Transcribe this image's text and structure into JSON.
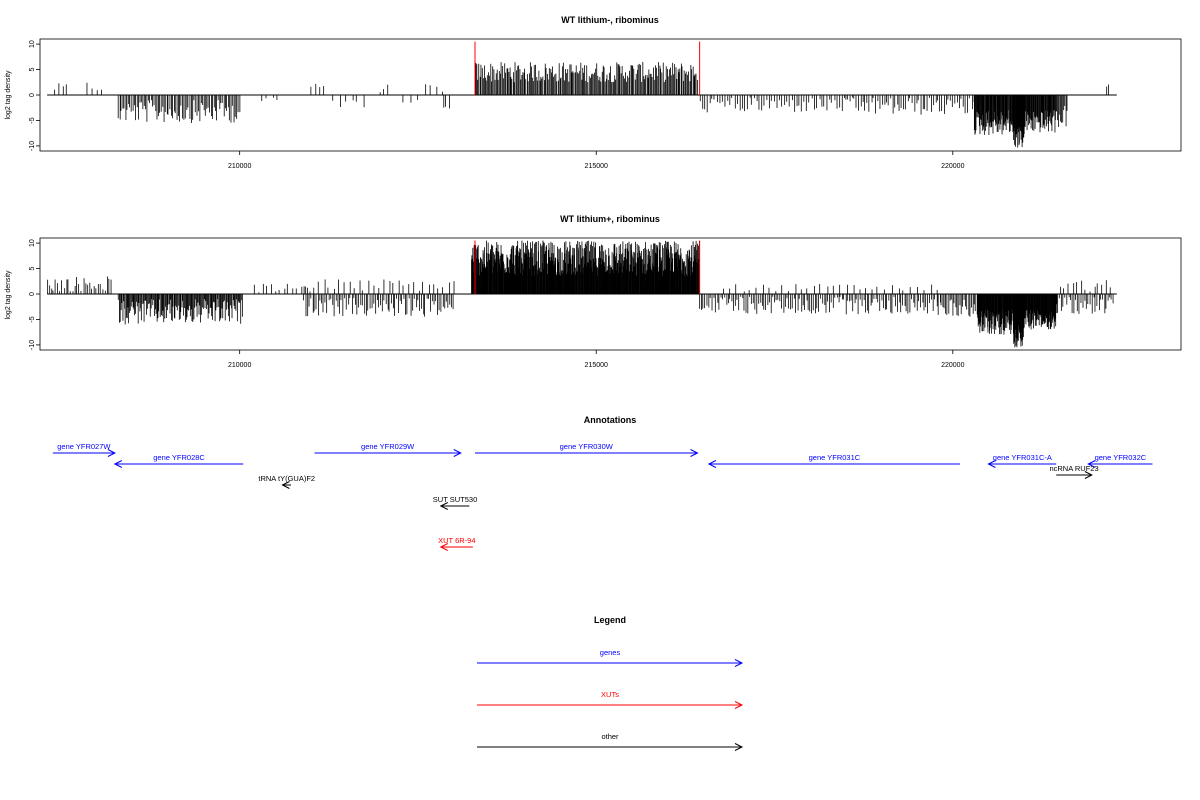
{
  "colors": {
    "gene": "#0000ff",
    "xut": "#ff0000",
    "other": "#000000",
    "boundary": "#ff0000",
    "bars": "#000000"
  },
  "chart_data": [
    {
      "type": "bar",
      "title": "WT lithium-, ribominus",
      "ylabel": "log2 tag density",
      "xlim": [
        207200,
        223200
      ],
      "ylim": [
        -11,
        11
      ],
      "xticks": [
        210000,
        215000,
        220000
      ],
      "xtick_labels": [
        "210000",
        "215000",
        "220000"
      ],
      "yticks": [
        -10,
        -5,
        0,
        5,
        10
      ],
      "ytick_labels": [
        "-10",
        "-5",
        "0",
        "5",
        "10"
      ],
      "baseline_range": [
        207300,
        222300
      ],
      "boundaries": [
        213300,
        216450
      ],
      "segments": [
        {
          "start": 207400,
          "end": 207600,
          "min": 0.5,
          "max": 2.3,
          "step": 60,
          "sign": 1
        },
        {
          "start": 207850,
          "end": 208100,
          "min": 0.5,
          "max": 2.8,
          "step": 70,
          "sign": 1
        },
        {
          "start": 208300,
          "end": 210000,
          "min": 1.0,
          "max": 5.5,
          "step": 20,
          "sign": -1
        },
        {
          "start": 210300,
          "end": 210600,
          "min": 0.5,
          "max": 1.5,
          "step": 80,
          "sign": -1
        },
        {
          "start": 211000,
          "end": 211200,
          "min": 0.8,
          "max": 3.0,
          "step": 60,
          "sign": 1
        },
        {
          "start": 211300,
          "end": 211800,
          "min": 0.5,
          "max": 2.5,
          "step": 90,
          "sign": -1
        },
        {
          "start": 211950,
          "end": 212100,
          "min": 0.5,
          "max": 2.2,
          "step": 70,
          "sign": 1
        },
        {
          "start": 212300,
          "end": 212500,
          "min": 0.5,
          "max": 1.5,
          "step": 90,
          "sign": -1
        },
        {
          "start": 212600,
          "end": 212900,
          "min": 0.5,
          "max": 2.3,
          "step": 80,
          "sign": 1
        },
        {
          "start": 212850,
          "end": 212950,
          "min": 1.0,
          "max": 3.0,
          "step": 50,
          "sign": -1
        },
        {
          "start": 213310,
          "end": 216420,
          "min": 2.5,
          "max": 6.5,
          "step": 15,
          "sign": 1
        },
        {
          "start": 216450,
          "end": 218500,
          "min": 0.5,
          "max": 3.5,
          "step": 35,
          "sign": -1
        },
        {
          "start": 218500,
          "end": 220300,
          "min": 0.5,
          "max": 4.0,
          "step": 30,
          "sign": -1
        },
        {
          "start": 220300,
          "end": 220850,
          "min": 3.0,
          "max": 8.0,
          "step": 8,
          "sign": -1
        },
        {
          "start": 220850,
          "end": 221000,
          "min": 6.0,
          "max": 10.5,
          "step": 6,
          "sign": -1
        },
        {
          "start": 221000,
          "end": 221450,
          "min": 3.0,
          "max": 7.5,
          "step": 8,
          "sign": -1
        },
        {
          "start": 221450,
          "end": 221600,
          "min": 2.0,
          "max": 6.5,
          "step": 15,
          "sign": -1
        },
        {
          "start": 222150,
          "end": 222200,
          "min": 1.5,
          "max": 2.5,
          "step": 40,
          "sign": 1
        }
      ]
    },
    {
      "type": "bar",
      "title": "WT lithium+, ribominus",
      "ylabel": "log2 tag density",
      "xlim": [
        207200,
        223200
      ],
      "ylim": [
        -11,
        11
      ],
      "xticks": [
        210000,
        215000,
        220000
      ],
      "xtick_labels": [
        "210000",
        "215000",
        "220000"
      ],
      "yticks": [
        -10,
        -5,
        0,
        5,
        10
      ],
      "ytick_labels": [
        "-10",
        "-5",
        "0",
        "5",
        "10"
      ],
      "baseline_range": [
        207300,
        222300
      ],
      "boundaries": [
        213300,
        216450
      ],
      "segments": [
        {
          "start": 207300,
          "end": 208200,
          "min": 0.5,
          "max": 3.5,
          "step": 30,
          "sign": 1
        },
        {
          "start": 208300,
          "end": 210050,
          "min": 1.0,
          "max": 6.0,
          "step": 12,
          "sign": -1
        },
        {
          "start": 210200,
          "end": 211000,
          "min": 0.3,
          "max": 2.0,
          "step": 60,
          "sign": 1
        },
        {
          "start": 210900,
          "end": 213000,
          "min": 0.8,
          "max": 4.5,
          "step": 25,
          "sign": -1
        },
        {
          "start": 210900,
          "end": 213000,
          "min": 0.5,
          "max": 3.0,
          "step": 70,
          "sign": 1
        },
        {
          "start": 213250,
          "end": 216450,
          "min": 3.5,
          "max": 10.5,
          "step": 6,
          "sign": 1
        },
        {
          "start": 216450,
          "end": 219800,
          "min": 0.5,
          "max": 4.0,
          "step": 25,
          "sign": -1
        },
        {
          "start": 216800,
          "end": 219800,
          "min": 0.5,
          "max": 2.0,
          "step": 90,
          "sign": 1
        },
        {
          "start": 219800,
          "end": 220350,
          "min": 1.0,
          "max": 4.5,
          "step": 20,
          "sign": -1
        },
        {
          "start": 220350,
          "end": 220850,
          "min": 3.0,
          "max": 8.0,
          "step": 6,
          "sign": -1
        },
        {
          "start": 220850,
          "end": 221000,
          "min": 6.0,
          "max": 10.5,
          "step": 5,
          "sign": -1
        },
        {
          "start": 221000,
          "end": 221450,
          "min": 3.0,
          "max": 7.0,
          "step": 6,
          "sign": -1
        },
        {
          "start": 221450,
          "end": 222250,
          "min": 0.5,
          "max": 4.0,
          "step": 25,
          "sign": -1
        },
        {
          "start": 221500,
          "end": 222250,
          "min": 0.5,
          "max": 3.0,
          "step": 60,
          "sign": 1
        }
      ]
    }
  ],
  "annotations": {
    "title": "Annotations",
    "features": [
      {
        "label": "gene YFR027W",
        "kind": "gene",
        "start": 207380,
        "end": 208250,
        "strand": "+",
        "row": 0
      },
      {
        "label": "gene YFR028C",
        "kind": "gene",
        "start": 208250,
        "end": 210050,
        "strand": "-",
        "row": 1
      },
      {
        "label": "gene YFR029W",
        "kind": "gene",
        "start": 211050,
        "end": 213100,
        "strand": "+",
        "row": 0
      },
      {
        "label": "gene YFR030W",
        "kind": "gene",
        "start": 213300,
        "end": 216420,
        "strand": "+",
        "row": 0
      },
      {
        "label": "gene YFR031C",
        "kind": "gene",
        "start": 216580,
        "end": 220100,
        "strand": "-",
        "row": 1
      },
      {
        "label": "gene YFR031C-A",
        "kind": "gene",
        "start": 220500,
        "end": 221450,
        "strand": "-",
        "row": 1
      },
      {
        "label": "gene YFR032C",
        "kind": "gene",
        "start": 221900,
        "end": 222800,
        "strand": "-",
        "row": 1
      },
      {
        "label": "ncRNA RUF23",
        "kind": "other",
        "start": 221450,
        "end": 221950,
        "strand": "+",
        "row": 2
      },
      {
        "label": "tRNA tY(GUA)F2",
        "kind": "other",
        "start": 210600,
        "end": 210720,
        "strand": "-",
        "row": 3
      },
      {
        "label": "SUT SUT530",
        "kind": "other",
        "start": 212820,
        "end": 213220,
        "strand": "-",
        "row": 4
      },
      {
        "label": "XUT 6R-94",
        "kind": "xut",
        "start": 212820,
        "end": 213270,
        "strand": "-",
        "row": 5
      }
    ]
  },
  "legend": {
    "title": "Legend",
    "items": [
      {
        "label": "genes",
        "kind": "gene"
      },
      {
        "label": "XUTs",
        "kind": "xut"
      },
      {
        "label": "other",
        "kind": "other"
      }
    ]
  }
}
